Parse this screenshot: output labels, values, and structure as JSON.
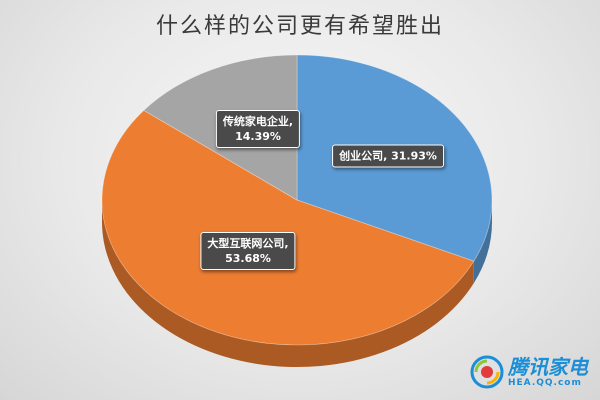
{
  "chart_data": {
    "type": "pie",
    "title": "什么样的公司更有希望胜出",
    "slices": [
      {
        "label": "创业公司",
        "value": 31.93,
        "value_label": "31.93%",
        "color": "#5b9bd5"
      },
      {
        "label": "大型互联网公司",
        "value": 53.68,
        "value_label": "53.68%",
        "color": "#ed7d31"
      },
      {
        "label": "传统家电企业",
        "value": 14.39,
        "value_label": "14.39%",
        "color": "#a5a5a5"
      }
    ],
    "legend": "none",
    "start_angle": "12 o'clock",
    "direction": "clockwise",
    "style": "3d"
  },
  "watermark": {
    "name": "腾讯家电",
    "url": "HEA.QQ.com"
  }
}
